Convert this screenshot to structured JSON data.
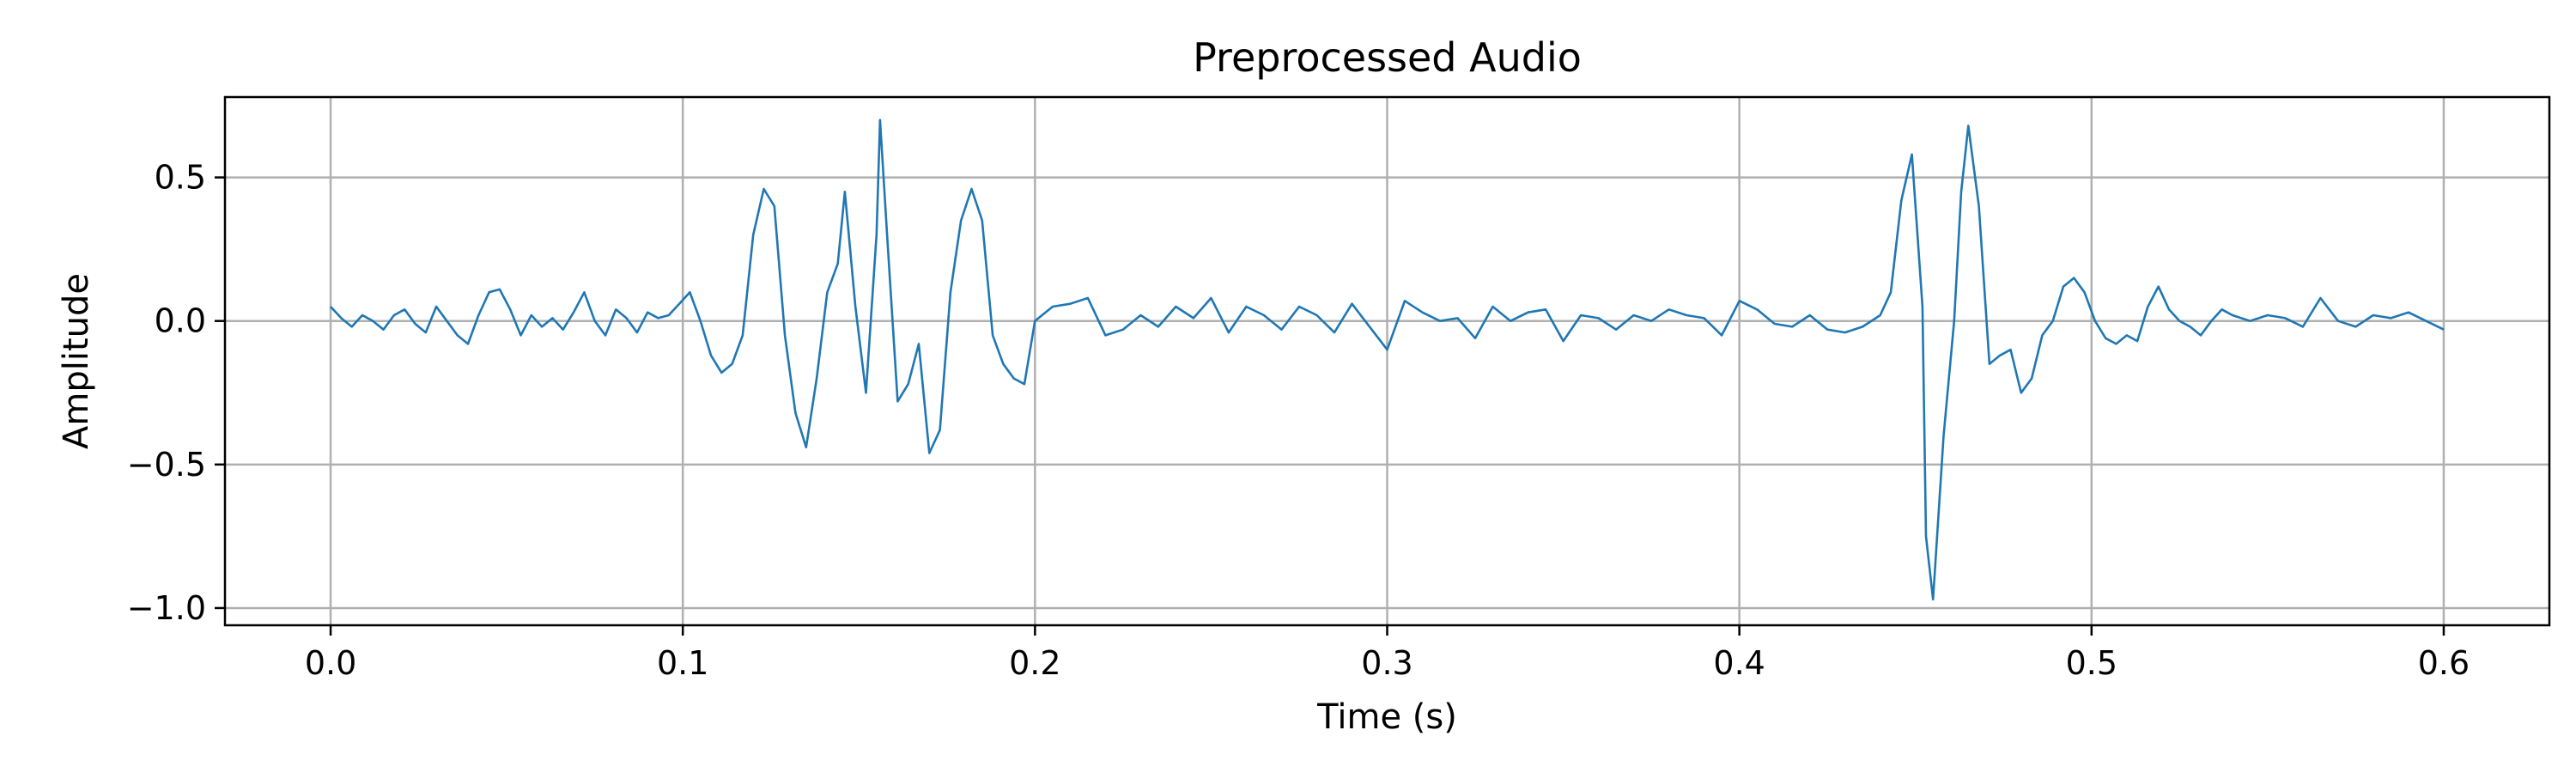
{
  "chart_data": {
    "type": "line",
    "title": "Preprocessed Audio",
    "xlabel": "Time (s)",
    "ylabel": "Amplitude",
    "xlim": [
      -0.03,
      0.63
    ],
    "ylim": [
      -1.06,
      0.78
    ],
    "grid": true,
    "x_ticks": [
      0.0,
      0.1,
      0.2,
      0.3,
      0.4,
      0.5,
      0.6
    ],
    "x_tick_labels": [
      "0.0",
      "0.1",
      "0.2",
      "0.3",
      "0.4",
      "0.5",
      "0.6"
    ],
    "y_ticks": [
      -1.0,
      -0.5,
      0.0,
      0.5
    ],
    "y_tick_labels": [
      "−1.0",
      "−0.5",
      "0.0",
      "0.5"
    ],
    "series": [
      {
        "color": "#1f77b4",
        "x": [
          0.0,
          0.003,
          0.006,
          0.009,
          0.012,
          0.015,
          0.018,
          0.021,
          0.024,
          0.027,
          0.03,
          0.033,
          0.036,
          0.039,
          0.042,
          0.045,
          0.048,
          0.051,
          0.054,
          0.057,
          0.06,
          0.063,
          0.066,
          0.069,
          0.072,
          0.075,
          0.078,
          0.081,
          0.084,
          0.087,
          0.09,
          0.093,
          0.096,
          0.099,
          0.102,
          0.105,
          0.108,
          0.111,
          0.114,
          0.117,
          0.12,
          0.123,
          0.126,
          0.129,
          0.132,
          0.135,
          0.138,
          0.141,
          0.144,
          0.146,
          0.149,
          0.152,
          0.155,
          0.156,
          0.158,
          0.161,
          0.164,
          0.167,
          0.17,
          0.173,
          0.176,
          0.179,
          0.182,
          0.185,
          0.188,
          0.191,
          0.194,
          0.197,
          0.2,
          0.205,
          0.21,
          0.215,
          0.22,
          0.225,
          0.23,
          0.235,
          0.24,
          0.245,
          0.25,
          0.255,
          0.26,
          0.265,
          0.27,
          0.275,
          0.28,
          0.285,
          0.29,
          0.295,
          0.3,
          0.305,
          0.31,
          0.315,
          0.32,
          0.325,
          0.33,
          0.335,
          0.34,
          0.345,
          0.35,
          0.355,
          0.36,
          0.365,
          0.37,
          0.375,
          0.38,
          0.385,
          0.39,
          0.395,
          0.4,
          0.405,
          0.41,
          0.415,
          0.42,
          0.425,
          0.43,
          0.435,
          0.44,
          0.443,
          0.446,
          0.449,
          0.452,
          0.453,
          0.455,
          0.458,
          0.461,
          0.463,
          0.465,
          0.468,
          0.471,
          0.474,
          0.477,
          0.48,
          0.483,
          0.486,
          0.489,
          0.492,
          0.495,
          0.498,
          0.501,
          0.504,
          0.507,
          0.51,
          0.513,
          0.516,
          0.519,
          0.522,
          0.525,
          0.528,
          0.531,
          0.534,
          0.537,
          0.54,
          0.545,
          0.55,
          0.555,
          0.56,
          0.565,
          0.57,
          0.575,
          0.58,
          0.585,
          0.59,
          0.595,
          0.6
        ],
        "y": [
          0.05,
          0.01,
          -0.02,
          0.02,
          0.0,
          -0.03,
          0.02,
          0.04,
          -0.01,
          -0.04,
          0.05,
          0.0,
          -0.05,
          -0.08,
          0.02,
          0.1,
          0.11,
          0.04,
          -0.05,
          0.02,
          -0.02,
          0.01,
          -0.03,
          0.03,
          0.1,
          0.0,
          -0.05,
          0.04,
          0.01,
          -0.04,
          0.03,
          0.01,
          0.02,
          0.06,
          0.1,
          0.0,
          -0.12,
          -0.18,
          -0.15,
          -0.05,
          0.3,
          0.46,
          0.4,
          -0.05,
          -0.32,
          -0.44,
          -0.2,
          0.1,
          0.2,
          0.45,
          0.05,
          -0.25,
          0.3,
          0.7,
          0.3,
          -0.28,
          -0.22,
          -0.08,
          -0.46,
          -0.38,
          0.1,
          0.35,
          0.46,
          0.35,
          -0.05,
          -0.15,
          -0.2,
          -0.22,
          0.0,
          0.05,
          0.06,
          0.08,
          -0.05,
          -0.03,
          0.02,
          -0.02,
          0.05,
          0.01,
          0.08,
          -0.04,
          0.05,
          0.02,
          -0.03,
          0.05,
          0.02,
          -0.04,
          0.06,
          -0.02,
          -0.1,
          0.07,
          0.03,
          0.0,
          0.01,
          -0.06,
          0.05,
          0.0,
          0.03,
          0.04,
          -0.07,
          0.02,
          0.01,
          -0.03,
          0.02,
          0.0,
          0.04,
          0.02,
          0.01,
          -0.05,
          0.07,
          0.04,
          -0.01,
          -0.02,
          0.02,
          -0.03,
          -0.04,
          -0.02,
          0.02,
          0.1,
          0.42,
          0.58,
          0.05,
          -0.75,
          -0.97,
          -0.4,
          0.0,
          0.45,
          0.68,
          0.4,
          -0.15,
          -0.12,
          -0.1,
          -0.25,
          -0.2,
          -0.05,
          0.0,
          0.12,
          0.15,
          0.1,
          0.0,
          -0.06,
          -0.08,
          -0.05,
          -0.07,
          0.05,
          0.12,
          0.04,
          0.0,
          -0.02,
          -0.05,
          0.0,
          0.04,
          0.02,
          0.0,
          0.02,
          0.01,
          -0.02,
          0.08,
          0.0,
          -0.02,
          0.02,
          0.01,
          0.03,
          0.0,
          -0.03
        ]
      }
    ]
  }
}
